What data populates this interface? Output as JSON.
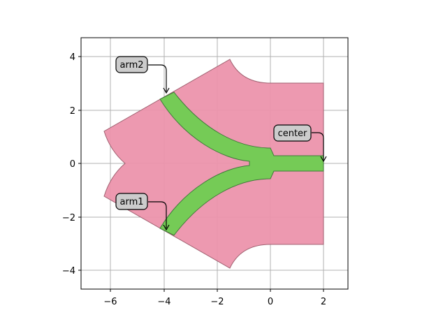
{
  "chart_data": {
    "type": "diagram",
    "xlim": [
      -7.1,
      2.9
    ],
    "ylim": [
      -4.7,
      4.7
    ],
    "grid": true,
    "x_ticks": [
      "−6",
      "−4",
      "−2",
      "0",
      "2"
    ],
    "y_ticks": [
      "4",
      "2",
      "0",
      "−2",
      "−4"
    ],
    "annotations": [
      {
        "label": "arm2",
        "target": [
          -3.9,
          2.6
        ]
      },
      {
        "label": "arm1",
        "target": [
          -3.9,
          -2.6
        ]
      },
      {
        "label": "center",
        "target": [
          2.0,
          0.0
        ]
      }
    ],
    "colors": {
      "cladding": "#ec94ac",
      "core": "#75cb56",
      "annotation_box": "#cccccc"
    }
  }
}
